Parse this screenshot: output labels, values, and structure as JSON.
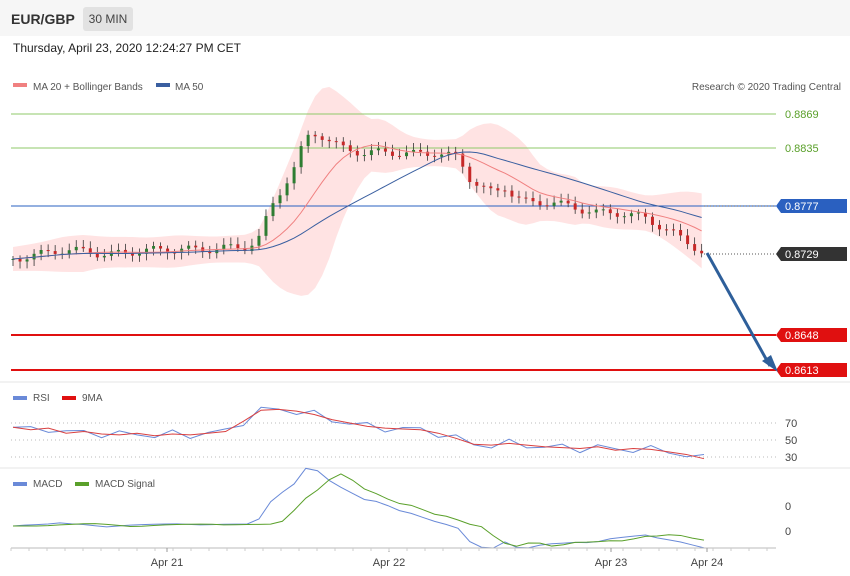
{
  "header": {
    "symbol": "EUR/GBP",
    "timeframe": "30 MIN"
  },
  "timestamp": "Thursday, April 23, 2020 12:24:27 PM CET",
  "credit": "Research © 2020 Trading Central",
  "legend": {
    "ma20": "MA 20 + Bollinger Bands",
    "ma50": "MA 50",
    "rsi": "RSI",
    "rsi_ma": "9MA",
    "macd": "MACD",
    "macd_signal": "MACD Signal"
  },
  "colors": {
    "ma20": "#f08080",
    "ma50": "#3a5fa0",
    "bands": "#ffdada",
    "resistance": "#8fc86a",
    "support": "#e01010",
    "pivot": "#2a60c0",
    "current": "#333333",
    "arrow": "#2e5f9a",
    "up_candle": "#2e7d32",
    "down_candle": "#c62828",
    "rsi": "#6a8ad8",
    "macd": "#6a8ad8",
    "macd_signal": "#5aa02a"
  },
  "chart_data": {
    "type": "candlestick",
    "title": "EUR/GBP",
    "x_ticks": [
      "Apr 21",
      "Apr 22",
      "Apr 23",
      "Apr 24"
    ],
    "levels": [
      {
        "label": "0.8869",
        "value": 0.8869,
        "kind": "resistance"
      },
      {
        "label": "0.8835",
        "value": 0.8835,
        "kind": "resistance"
      },
      {
        "label": "0.8777",
        "value": 0.8777,
        "kind": "pivot"
      },
      {
        "label": "0.8729",
        "value": 0.8729,
        "kind": "current"
      },
      {
        "label": "0.8648",
        "value": 0.8648,
        "kind": "support"
      },
      {
        "label": "0.8613",
        "value": 0.8613,
        "kind": "support"
      }
    ],
    "price_range": [
      0.859,
      0.888
    ],
    "price_path": [
      [
        0,
        0.8724
      ],
      [
        10,
        0.8728
      ],
      [
        20,
        0.8733
      ],
      [
        30,
        0.8732
      ],
      [
        40,
        0.8728
      ],
      [
        50,
        0.8731
      ],
      [
        60,
        0.8733
      ],
      [
        70,
        0.8734
      ],
      [
        80,
        0.8733
      ],
      [
        90,
        0.8735
      ],
      [
        100,
        0.8736
      ],
      [
        105,
        0.8745
      ],
      [
        110,
        0.8775
      ],
      [
        115,
        0.8795
      ],
      [
        120,
        0.8815
      ],
      [
        125,
        0.8845
      ],
      [
        130,
        0.885
      ],
      [
        140,
        0.8835
      ],
      [
        150,
        0.883
      ],
      [
        160,
        0.8831
      ],
      [
        170,
        0.8829
      ],
      [
        180,
        0.883
      ],
      [
        190,
        0.8826
      ],
      [
        195,
        0.8805
      ],
      [
        200,
        0.8795
      ],
      [
        205,
        0.879
      ],
      [
        210,
        0.8796
      ],
      [
        215,
        0.8785
      ],
      [
        220,
        0.878
      ],
      [
        230,
        0.8781
      ],
      [
        240,
        0.8775
      ],
      [
        250,
        0.877
      ],
      [
        260,
        0.877
      ],
      [
        270,
        0.8765
      ],
      [
        280,
        0.8752
      ],
      [
        290,
        0.8738
      ],
      [
        295,
        0.8729
      ]
    ],
    "forecast": {
      "from": 0.8729,
      "to": 0.8613
    },
    "rsi": {
      "levels": [
        "70",
        "50",
        "30"
      ],
      "values": [
        65,
        62,
        64,
        58,
        60,
        57,
        56,
        58,
        55,
        57,
        56,
        58,
        60,
        72,
        85,
        86,
        84,
        80,
        74,
        70,
        66,
        64,
        63,
        62,
        58,
        52,
        45,
        44,
        46,
        44,
        42,
        41,
        40,
        42,
        38,
        40,
        39,
        36,
        33,
        28
      ]
    },
    "macd": {
      "levels": [
        "0",
        "0"
      ]
    }
  }
}
